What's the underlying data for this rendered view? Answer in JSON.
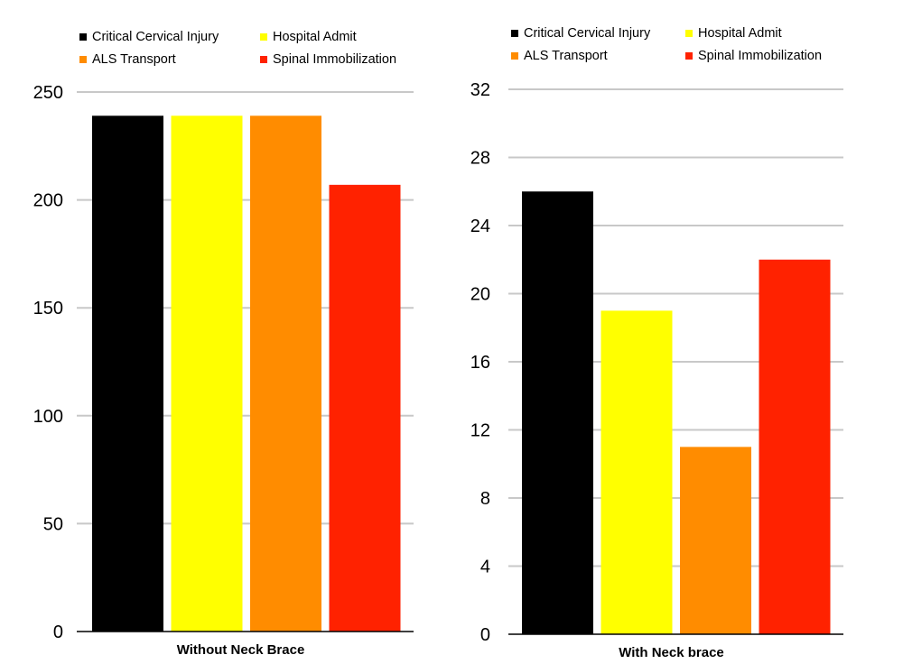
{
  "colors": {
    "Critical Cervical Injury": "#000000",
    "Hospital Admit": "#ffff00",
    "ALS Transport": "#ff8c00",
    "Spinal Immobilization": "#ff2200"
  },
  "chart_data": [
    {
      "type": "bar",
      "title": "",
      "xlabel": "Without Neck Brace",
      "ylabel": "",
      "ylim": [
        0,
        250
      ],
      "yticks": [
        0,
        50,
        100,
        150,
        200,
        250
      ],
      "grid": true,
      "legend_position": "top",
      "series": [
        {
          "name": "Critical Cervical Injury",
          "values": [
            239
          ]
        },
        {
          "name": "Hospital Admit",
          "values": [
            239
          ]
        },
        {
          "name": "ALS Transport",
          "values": [
            239
          ]
        },
        {
          "name": "Spinal Immobilization",
          "values": [
            207
          ]
        }
      ]
    },
    {
      "type": "bar",
      "title": "",
      "xlabel": "With Neck brace",
      "ylabel": "",
      "ylim": [
        0,
        32
      ],
      "yticks": [
        0,
        4,
        8,
        12,
        16,
        20,
        24,
        28,
        32
      ],
      "grid": true,
      "legend_position": "top",
      "series": [
        {
          "name": "Critical Cervical Injury",
          "values": [
            26
          ]
        },
        {
          "name": "Hospital Admit",
          "values": [
            19
          ]
        },
        {
          "name": "ALS Transport",
          "values": [
            11
          ]
        },
        {
          "name": "Spinal Immobilization",
          "values": [
            22
          ]
        }
      ]
    }
  ]
}
